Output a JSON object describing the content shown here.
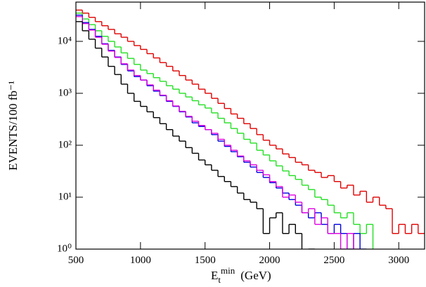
{
  "chart_data": {
    "type": "step-histogram",
    "y_label": "EVENTS/100 fb⁻¹",
    "x_label": {
      "symbol": "E",
      "subscript": "t",
      "superscript": "min",
      "unit": "(GeV)"
    },
    "log_y": true,
    "xlim": [
      500,
      3200
    ],
    "ylim": [
      1,
      57000
    ],
    "xticks": [
      500,
      1000,
      1500,
      2000,
      2500,
      3000
    ],
    "yticks": [
      {
        "value": 1,
        "label": "10⁰"
      },
      {
        "value": 10,
        "label": "10¹"
      },
      {
        "value": 100,
        "label": "10²"
      },
      {
        "value": 1000,
        "label": "10³"
      },
      {
        "value": 10000,
        "label": "10⁴"
      }
    ],
    "bins": [
      500,
      550,
      600,
      650,
      700,
      750,
      800,
      850,
      900,
      950,
      1000,
      1050,
      1100,
      1150,
      1200,
      1250,
      1300,
      1350,
      1400,
      1450,
      1500,
      1550,
      1600,
      1650,
      1700,
      1750,
      1800,
      1850,
      1900,
      1950,
      2000,
      2050,
      2100,
      2150,
      2200,
      2250,
      2300,
      2350,
      2400,
      2450,
      2500,
      2550,
      2600,
      2650,
      2700,
      2750,
      2800,
      2850,
      2900,
      2950,
      3000,
      3050,
      3100,
      3150,
      3200
    ],
    "series": [
      {
        "color": "#e00000",
        "values": [
          40000,
          35000,
          29000,
          24000,
          20000,
          17000,
          14000,
          12000,
          10000,
          8300,
          7000,
          5800,
          4800,
          3900,
          3300,
          2700,
          2200,
          1800,
          1500,
          1200,
          1000,
          800,
          640,
          510,
          400,
          330,
          260,
          210,
          160,
          125,
          100,
          85,
          68,
          58,
          47,
          42,
          33,
          30,
          24,
          26,
          20,
          15,
          17,
          11,
          13,
          8,
          10,
          7,
          6,
          2,
          3,
          2,
          3,
          2
        ]
      },
      {
        "color": "#22e022",
        "values": [
          35000,
          27000,
          21000,
          16000,
          12500,
          10000,
          7800,
          6000,
          4700,
          3600,
          2800,
          2400,
          2000,
          1700,
          1400,
          1200,
          1000,
          850,
          720,
          600,
          520,
          420,
          330,
          270,
          210,
          170,
          130,
          110,
          80,
          65,
          50,
          40,
          32,
          26,
          22,
          17,
          14,
          10,
          9,
          7,
          5,
          4,
          5,
          3,
          2,
          3,
          null,
          null,
          null,
          null,
          null,
          null,
          null,
          null
        ]
      },
      {
        "color": "#0000e0",
        "values": [
          32000,
          23000,
          17000,
          12500,
          9000,
          6700,
          5000,
          3600,
          2700,
          2100,
          1800,
          1400,
          1100,
          900,
          700,
          560,
          440,
          350,
          270,
          230,
          200,
          160,
          120,
          95,
          75,
          60,
          47,
          38,
          30,
          24,
          19,
          15,
          12,
          9,
          7,
          5,
          4,
          5,
          3,
          2,
          3,
          2,
          1,
          2,
          1,
          null,
          null,
          null,
          null,
          null,
          null,
          null,
          null,
          null
        ]
      },
      {
        "color": "#e000e0",
        "values": [
          30000,
          22000,
          16500,
          12000,
          8800,
          6500,
          4900,
          3700,
          2800,
          2200,
          1800,
          1450,
          1150,
          920,
          720,
          570,
          450,
          360,
          290,
          240,
          200,
          170,
          130,
          100,
          80,
          62,
          50,
          42,
          33,
          27,
          20,
          16,
          10,
          11,
          8,
          5,
          6,
          3,
          4,
          2,
          2,
          1,
          2,
          1,
          null,
          null,
          null,
          null,
          null,
          null,
          null,
          null,
          null,
          null
        ]
      },
      {
        "color": "#000000",
        "values": [
          24000,
          16000,
          11000,
          7400,
          5000,
          3300,
          2300,
          1500,
          1000,
          700,
          560,
          440,
          340,
          260,
          200,
          150,
          120,
          90,
          70,
          52,
          42,
          33,
          25,
          20,
          16,
          12,
          9,
          8,
          6,
          2,
          4,
          5,
          2,
          3,
          2,
          null,
          1,
          null,
          null,
          null,
          null,
          null,
          null,
          null,
          null,
          null,
          null,
          null,
          null,
          null,
          null,
          null,
          null,
          null
        ]
      }
    ]
  }
}
